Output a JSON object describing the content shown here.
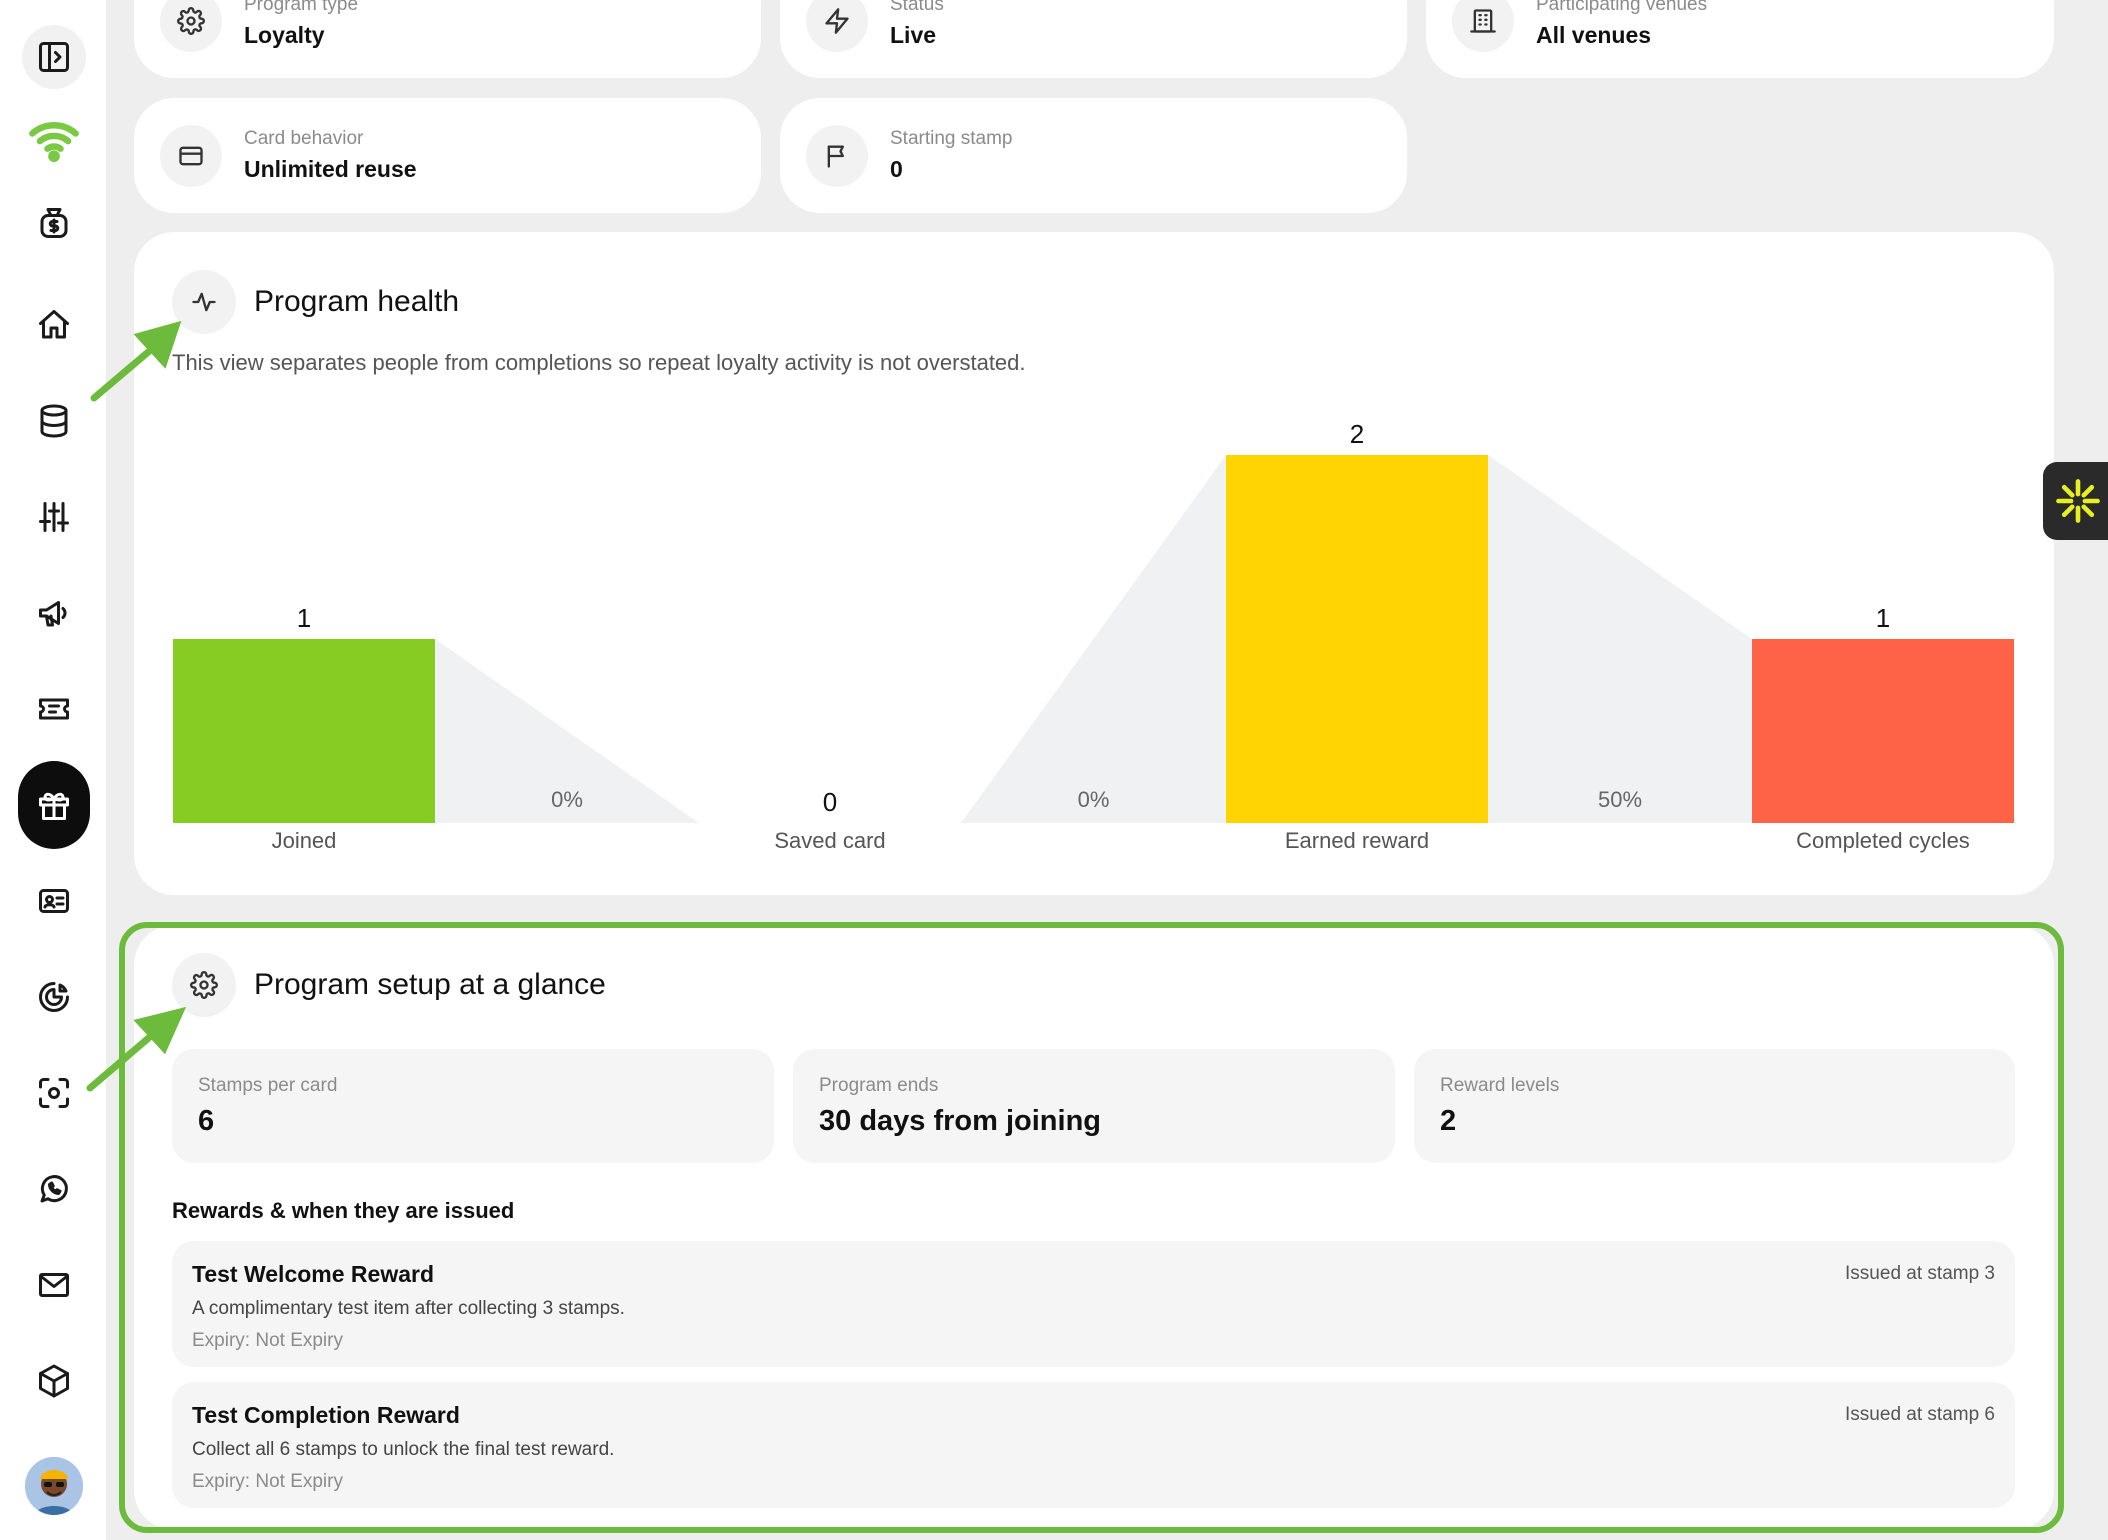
{
  "info_cards": [
    {
      "label": "Program type",
      "value": "Loyalty",
      "icon": "gear-icon"
    },
    {
      "label": "Status",
      "value": "Live",
      "icon": "bolt-icon"
    },
    {
      "label": "Participating venues",
      "value": "All venues",
      "icon": "building-icon"
    },
    {
      "label": "Card behavior",
      "value": "Unlimited reuse",
      "icon": "card-icon"
    },
    {
      "label": "Starting stamp",
      "value": "0",
      "icon": "flag-icon"
    }
  ],
  "program_health": {
    "title": "Program health",
    "description": "This view separates people from completions so repeat loyalty activity is not overstated.",
    "icon": "activity-icon"
  },
  "chart_data": {
    "type": "bar",
    "categories": [
      "Joined",
      "Saved card",
      "Earned reward",
      "Completed cycles"
    ],
    "values": [
      1,
      0,
      2,
      1
    ],
    "conversion_labels": [
      "0%",
      "0%",
      "50%"
    ],
    "colors": [
      "#86cc22",
      "#cccccc",
      "#ffd400",
      "#ff6347"
    ],
    "ylim": [
      0,
      2
    ],
    "grid": false,
    "legend": "none"
  },
  "program_setup": {
    "title": "Program setup at a glance",
    "icon": "gear-icon",
    "stats": [
      {
        "label": "Stamps per card",
        "value": "6"
      },
      {
        "label": "Program ends",
        "value": "30 days from joining"
      },
      {
        "label": "Reward levels",
        "value": "2"
      }
    ],
    "rewards_heading": "Rewards & when they are issued",
    "rewards": [
      {
        "name": "Test Welcome Reward",
        "description": "A complimentary test item after collecting 3 stamps.",
        "expiry": "Expiry: Not Expiry",
        "issued": "Issued at stamp 3"
      },
      {
        "name": "Test Completion Reward",
        "description": "Collect all 6 stamps to unlock the final test reward.",
        "expiry": "Expiry: Not Expiry",
        "issued": "Issued at stamp 6"
      }
    ]
  },
  "sidebar": {
    "items": [
      "sidebar-toggle-icon",
      "wifi-icon",
      "money-bag-icon",
      "home-icon",
      "database-icon",
      "sliders-icon",
      "megaphone-icon",
      "ticket-icon",
      "gift-icon",
      "id-card-icon",
      "pie-chart-icon",
      "scan-icon",
      "whatsapp-icon",
      "mail-icon",
      "box-icon"
    ],
    "active": "gift-icon",
    "accent": "#7ac943"
  },
  "highlight_color": "#6dbb3c"
}
